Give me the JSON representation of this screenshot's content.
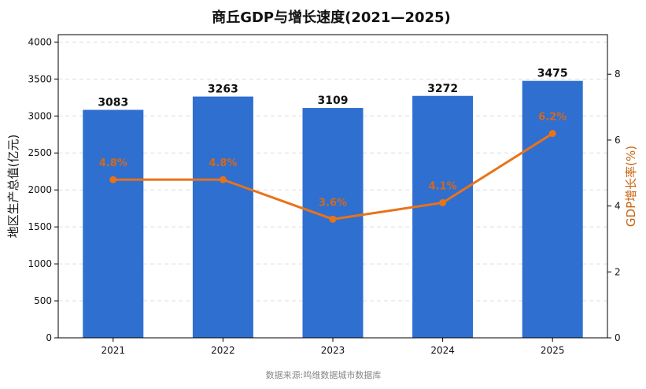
{
  "chart_data": {
    "type": "bar",
    "title": "商丘GDP与增长速度(2021—2025)",
    "categories": [
      "2021",
      "2022",
      "2023",
      "2024",
      "2025"
    ],
    "series": [
      {
        "name": "地区生产总值(亿元)",
        "type": "bar",
        "axis": "left",
        "values": [
          3083,
          3263,
          3109,
          3272,
          3475
        ],
        "value_labels": [
          "3083",
          "3263",
          "3109",
          "3272",
          "3475"
        ],
        "color": "#2f6fd0"
      },
      {
        "name": "GDP增长率(%)",
        "type": "line",
        "axis": "right",
        "values": [
          4.8,
          4.8,
          3.6,
          4.1,
          6.2
        ],
        "value_labels": [
          "4.8%",
          "4.8%",
          "3.6%",
          "4.1%",
          "6.2%"
        ],
        "color": "#e8731a"
      }
    ],
    "ylabel": "地区生产总值(亿元)",
    "y2label": "GDP增长率(%)",
    "ylim": [
      0,
      4100
    ],
    "y2lim": [
      0,
      9.2
    ],
    "yticks": [
      0,
      500,
      1000,
      1500,
      2000,
      2500,
      3000,
      3500,
      4000
    ],
    "y2ticks": [
      0,
      2,
      4,
      6,
      8
    ],
    "grid": true,
    "legend": "none"
  },
  "source_note": "数据来源:鸣维数据城市数据库",
  "colors": {
    "bar": "#2f6fd0",
    "line": "#e8731a",
    "rate_label": "#d2691e",
    "right_axis_label": "#c8630f",
    "grid": "#dddddd"
  }
}
